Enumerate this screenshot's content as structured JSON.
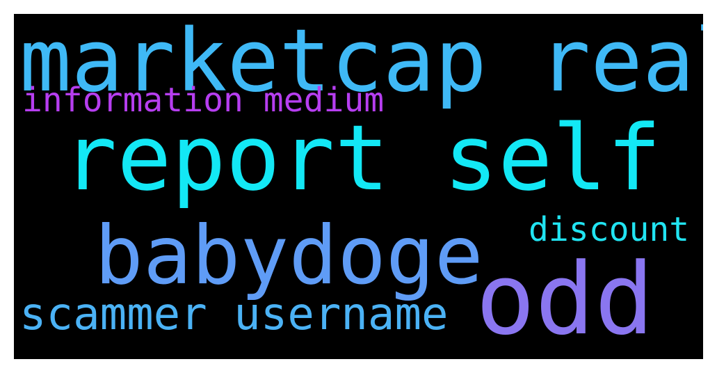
{
  "words": [
    {
      "id": "marketcap-real",
      "text": "marketcap real",
      "color": "#3fb9f6"
    },
    {
      "id": "information-medium",
      "text": "information medium",
      "color": "#b63ef0"
    },
    {
      "id": "report-self",
      "text": "report self",
      "color": "#13e8f5"
    },
    {
      "id": "discount",
      "text": "discount",
      "color": "#21e4f2"
    },
    {
      "id": "babydoge",
      "text": "babydoge",
      "color": "#5f9cf6"
    },
    {
      "id": "odd",
      "text": "odd",
      "color": "#8a76f0"
    },
    {
      "id": "scammer-username",
      "text": "scammer username",
      "color": "#4bb2f5"
    }
  ],
  "background_color": "#000000"
}
